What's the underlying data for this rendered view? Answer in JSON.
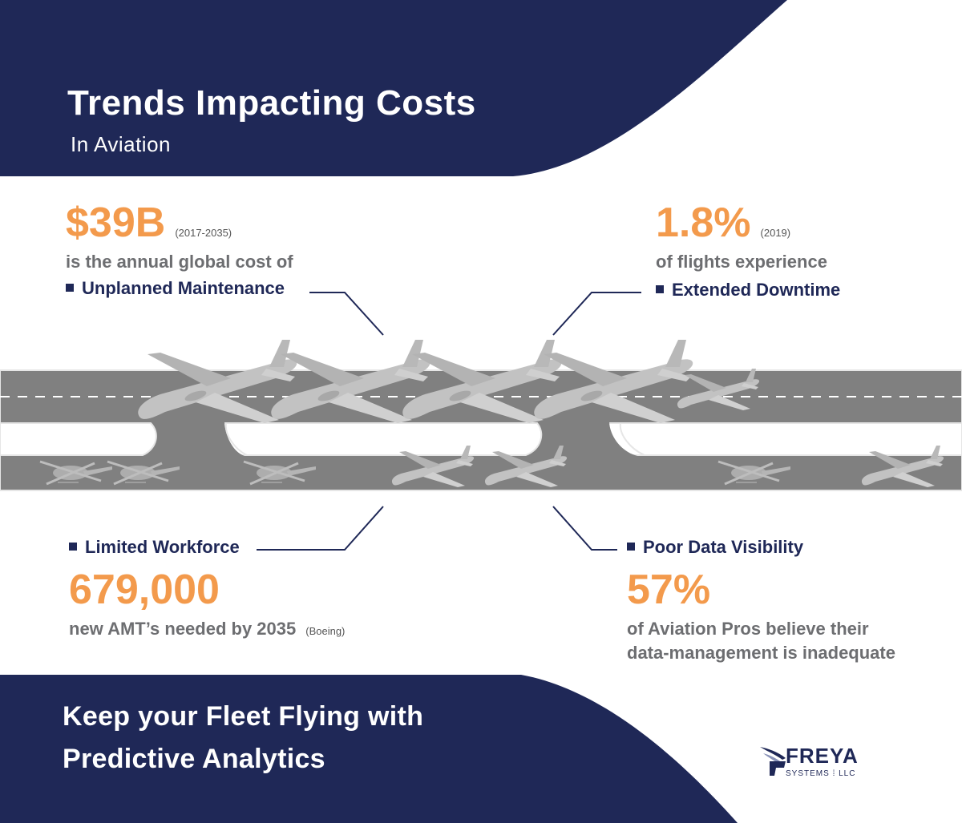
{
  "header": {
    "title": "Trends Impacting Costs",
    "subtitle": "In Aviation"
  },
  "stats": {
    "unplanned": {
      "value": "$39B",
      "years": "(2017-2035)",
      "description": "is the annual global cost of",
      "label": "Unplanned Maintenance"
    },
    "downtime": {
      "value": "1.8%",
      "years": "(2019)",
      "description": "of flights experience",
      "label": "Extended Downtime"
    },
    "workforce": {
      "label": "Limited Workforce",
      "value": "679,000",
      "description": "new AMT’s needed by 2035",
      "source": "(Boeing)"
    },
    "visibility": {
      "label": "Poor Data Visibility",
      "value": "57%",
      "description_line1": "of Aviation Pros believe their",
      "description_line2": "data-management is inadequate"
    }
  },
  "footer": {
    "cta_line1": "Keep your Fleet Flying with",
    "cta_line2": "Predictive Analytics",
    "logo_word": "FREYA",
    "logo_sub": "SYSTEMS ⁞ LLC"
  },
  "colors": {
    "navy": "#1f2857",
    "orange": "#f39a4c",
    "gray_text": "#6d6e71",
    "runway": "#808080",
    "plane": "#c4c4c4"
  },
  "icons": [
    "airplane-icon",
    "helicopter-icon",
    "freya-wing-icon"
  ]
}
